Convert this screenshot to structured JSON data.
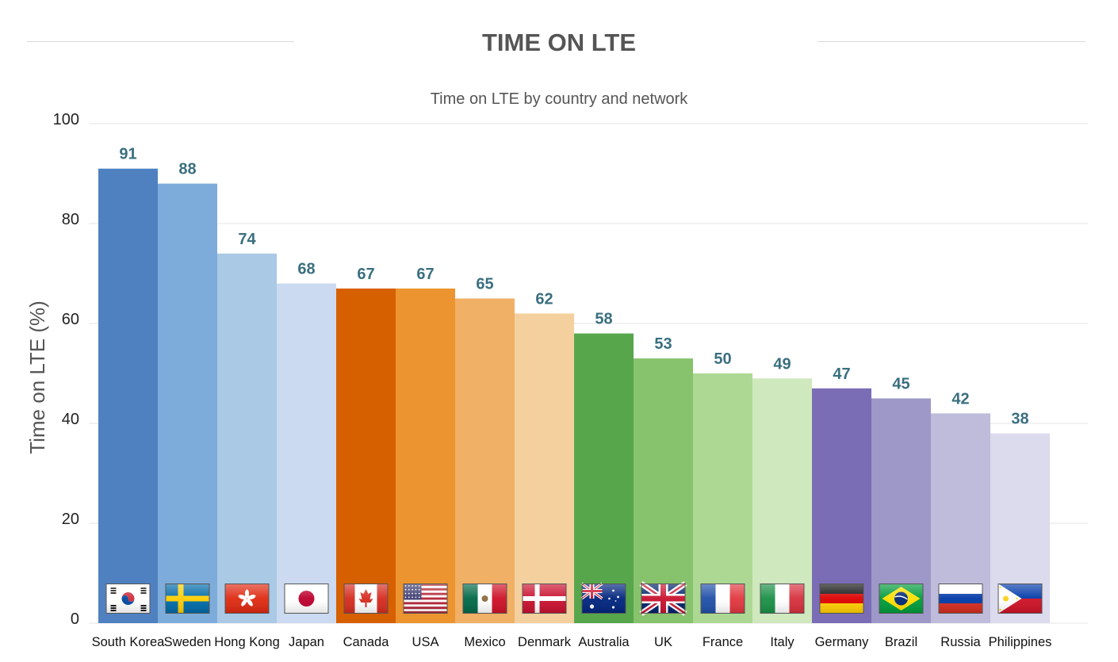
{
  "header": {
    "title": "TIME ON LTE",
    "subtitle": "Time on LTE by country and network"
  },
  "chart_data": {
    "type": "bar",
    "title": "TIME ON LTE",
    "subtitle": "Time on LTE by country and network",
    "xlabel": "",
    "ylabel": "Time on LTE (%)",
    "ylim": [
      0,
      100
    ],
    "yticks": [
      0,
      20,
      40,
      60,
      80,
      100
    ],
    "grid": true,
    "categories": [
      "South Korea",
      "Sweden",
      "Hong Kong",
      "Japan",
      "Canada",
      "USA",
      "Mexico",
      "Denmark",
      "Australia",
      "UK",
      "France",
      "Italy",
      "Germany",
      "Brazil",
      "Russia",
      "Philippines"
    ],
    "values": [
      91,
      88,
      74,
      68,
      67,
      67,
      65,
      62,
      58,
      53,
      50,
      49,
      47,
      45,
      42,
      38
    ],
    "colors": [
      "#4f81c0",
      "#7dacda",
      "#a9c9e5",
      "#cbdaf0",
      "#d65f00",
      "#ec942f",
      "#f0b066",
      "#f4d09e",
      "#57a64c",
      "#87c26c",
      "#acd894",
      "#cfe8bd",
      "#7a6db6",
      "#9e98c9",
      "#bfbcdb",
      "#dcdbed"
    ],
    "flags": [
      "south-korea-flag-icon",
      "sweden-flag-icon",
      "hong-kong-flag-icon",
      "japan-flag-icon",
      "canada-flag-icon",
      "usa-flag-icon",
      "mexico-flag-icon",
      "denmark-flag-icon",
      "australia-flag-icon",
      "uk-flag-icon",
      "france-flag-icon",
      "italy-flag-icon",
      "germany-flag-icon",
      "brazil-flag-icon",
      "russia-flag-icon",
      "philippines-flag-icon"
    ],
    "label_color": "#3a6f80"
  }
}
